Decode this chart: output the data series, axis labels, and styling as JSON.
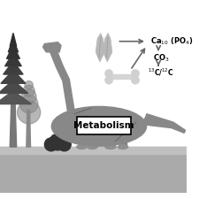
{
  "bg_color": "white",
  "metabolism_label": "Metabolism",
  "chem1": "Ca$_{10}$ (PO$_4$)",
  "chem2": "CO$_3$",
  "chem3": "$^{13}$C/$^{12}$C",
  "arrow_color": "#666666",
  "ground_color_top": "#999999",
  "ground_color_bot": "#777777",
  "dino_color": "#888888",
  "dino_dark": "#666666",
  "tree_dark": "#444444",
  "tree_mid": "#666666",
  "bush_color": "#333333",
  "bone_color": "#cccccc",
  "tooth_color": "#aaaaaa",
  "figsize": [
    2.25,
    2.25
  ],
  "dpi": 100
}
